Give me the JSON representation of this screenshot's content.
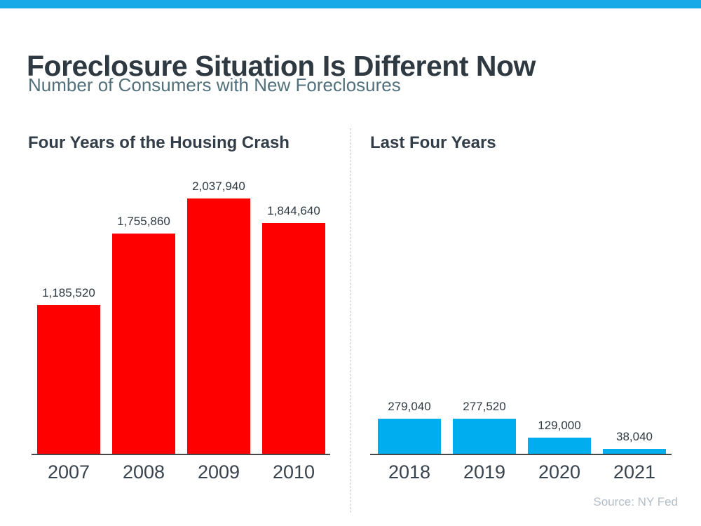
{
  "page": {
    "title": "Foreclosure Situation Is Different Now",
    "subtitle": "Number of Consumers with New Foreclosures",
    "source": "Source: NY Fed"
  },
  "colors": {
    "accent_bar": "#18a9e8",
    "crash_bars": "#ff0000",
    "recent_bars": "#00aeef",
    "title_text": "#2e3942",
    "subtitle_text": "#52707b",
    "source_text": "#b2bdc7"
  },
  "chart_data": [
    {
      "type": "bar",
      "title": "Four Years of the Housing Crash",
      "categories": [
        "2007",
        "2008",
        "2009",
        "2010"
      ],
      "values": [
        1185520,
        1755860,
        2037940,
        1844640
      ],
      "value_labels": [
        "1,185,520",
        "1,755,860",
        "2,037,940",
        "1,844,640"
      ],
      "bar_color": "#ff0000",
      "ylim": [
        0,
        2037940
      ],
      "grid": false,
      "legend": "none"
    },
    {
      "type": "bar",
      "title": "Last Four Years",
      "categories": [
        "2018",
        "2019",
        "2020",
        "2021"
      ],
      "values": [
        279040,
        277520,
        129000,
        38040
      ],
      "value_labels": [
        "279,040",
        "277,520",
        "129,000",
        "38,040"
      ],
      "bar_color": "#00aeef",
      "ylim": [
        0,
        2037940
      ],
      "grid": false,
      "legend": "none"
    }
  ]
}
